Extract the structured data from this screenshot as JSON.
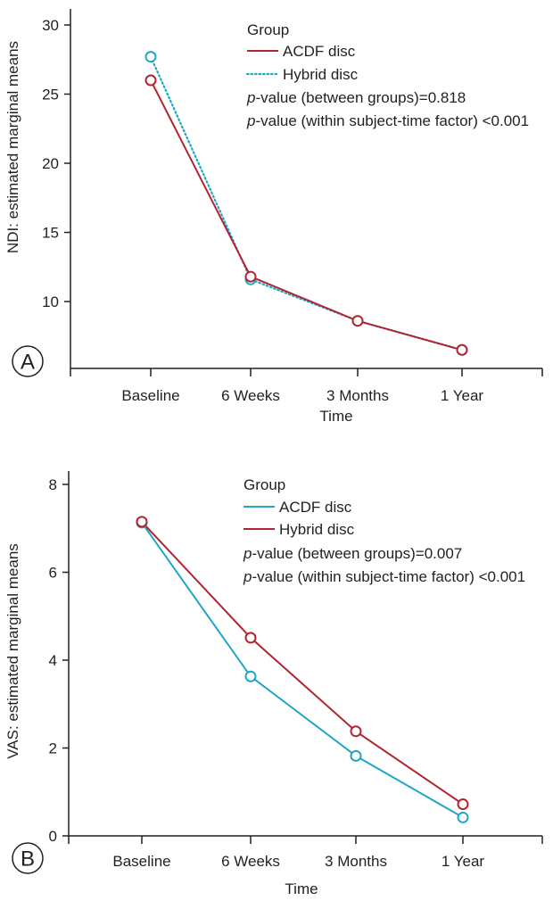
{
  "colors": {
    "red": "#b22530",
    "blue": "#1fa6c8",
    "axis": "#231f20"
  },
  "chart_data": [
    {
      "type": "line",
      "panel_label": "A",
      "title": "",
      "xlabel": "Time",
      "ylabel": "NDI: estimated marginal means",
      "categories": [
        "Baseline",
        "6 Weeks",
        "3 Months",
        "1 Year"
      ],
      "ylim": [
        5,
        31
      ],
      "yticks": [
        10,
        15,
        20,
        25,
        30
      ],
      "grid": false,
      "legend": {
        "title": "Group",
        "entries": [
          {
            "label": "ACDF disc",
            "color": "#b22530",
            "style": "solid"
          },
          {
            "label": "Hybrid disc",
            "color": "#1fa6c8",
            "style": "dotted"
          }
        ],
        "stats": [
          {
            "prefix": "p",
            "text": "-value (between groups)=0.818"
          },
          {
            "prefix": "p",
            "text": "-value (within subject-time factor) <0.001"
          }
        ]
      },
      "series": [
        {
          "name": "Hybrid disc",
          "color": "#1fa6c8",
          "style": "dotted",
          "values": [
            27.7,
            11.6,
            8.6,
            6.5
          ],
          "markerColor": "#1fa6c8"
        },
        {
          "name": "ACDF disc",
          "color": "#b22530",
          "style": "solid",
          "values": [
            26.0,
            11.8,
            8.6,
            6.5
          ],
          "markerColor": "#b22530"
        }
      ]
    },
    {
      "type": "line",
      "panel_label": "B",
      "title": "",
      "xlabel": "Time",
      "ylabel": "VAS: estimated marginal means",
      "categories": [
        "Baseline",
        "6 Weeks",
        "3 Months",
        "1 Year"
      ],
      "ylim": [
        0,
        8.4
      ],
      "yticks": [
        0,
        2,
        4,
        6,
        8
      ],
      "grid": false,
      "legend": {
        "title": "Group",
        "entries": [
          {
            "label": "ACDF disc",
            "color": "#1fa6c8",
            "style": "solid"
          },
          {
            "label": "Hybrid disc",
            "color": "#b22530",
            "style": "solid"
          }
        ],
        "stats": [
          {
            "prefix": "p",
            "text": "-value (between groups)=0.007"
          },
          {
            "prefix": "p",
            "text": "-value (within subject-time factor) <0.001"
          }
        ]
      },
      "series": [
        {
          "name": "ACDF disc",
          "color": "#1fa6c8",
          "style": "solid",
          "values": [
            7.13,
            3.63,
            1.82,
            0.42
          ],
          "markerColor": "#1fa6c8"
        },
        {
          "name": "Hybrid disc",
          "color": "#b22530",
          "style": "solid",
          "values": [
            7.15,
            4.51,
            2.38,
            0.72
          ],
          "markerColor": "#b22530"
        }
      ]
    }
  ]
}
